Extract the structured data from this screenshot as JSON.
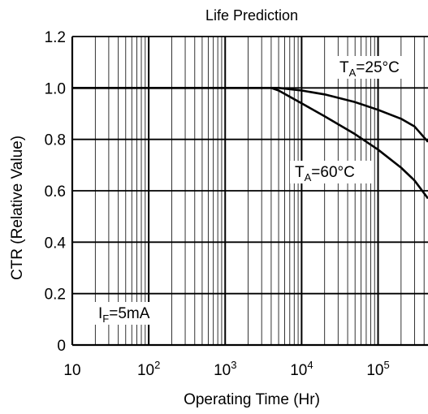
{
  "chart_data": {
    "type": "line",
    "title": "Life Prediction",
    "xlabel": "Operating Time (Hr)",
    "ylabel": "CTR (Relative Value)",
    "x_scale": "log",
    "xlim": [
      10,
      450000
    ],
    "ylim": [
      0,
      1.2
    ],
    "grid": true,
    "x_ticks": [
      {
        "value": 10,
        "base": "10",
        "exp": ""
      },
      {
        "value": 100,
        "base": "10",
        "exp": "2"
      },
      {
        "value": 1000,
        "base": "10",
        "exp": "3"
      },
      {
        "value": 10000,
        "base": "10",
        "exp": "4"
      },
      {
        "value": 100000,
        "base": "10",
        "exp": "5"
      }
    ],
    "y_ticks": [
      {
        "value": 0,
        "label": "0"
      },
      {
        "value": 0.2,
        "label": "0.2"
      },
      {
        "value": 0.4,
        "label": "0.4"
      },
      {
        "value": 0.6,
        "label": "0.6"
      },
      {
        "value": 0.8,
        "label": "0.8"
      },
      {
        "value": 1.0,
        "label": "1.0"
      },
      {
        "value": 1.2,
        "label": "1.2"
      }
    ],
    "series": [
      {
        "name": "TA=25°C",
        "x": [
          10,
          100,
          1000,
          5000,
          10000,
          20000,
          50000,
          100000,
          200000,
          300000,
          450000
        ],
        "y": [
          1.0,
          1.0,
          1.0,
          1.0,
          0.99,
          0.975,
          0.945,
          0.915,
          0.88,
          0.85,
          0.79
        ]
      },
      {
        "name": "TA=60°C",
        "x": [
          10,
          100,
          1000,
          4000,
          5000,
          10000,
          20000,
          50000,
          100000,
          200000,
          300000,
          450000
        ],
        "y": [
          1.0,
          1.0,
          1.0,
          1.0,
          0.99,
          0.94,
          0.89,
          0.82,
          0.76,
          0.69,
          0.64,
          0.57
        ]
      }
    ],
    "annotations": {
      "ta25": {
        "prefix": "T",
        "sub": "A",
        "suffix": "=25°C"
      },
      "ta60": {
        "prefix": "T",
        "sub": "A",
        "suffix": "=60°C"
      },
      "if": {
        "prefix": "I",
        "sub": "F",
        "suffix": "=5mA"
      }
    }
  }
}
